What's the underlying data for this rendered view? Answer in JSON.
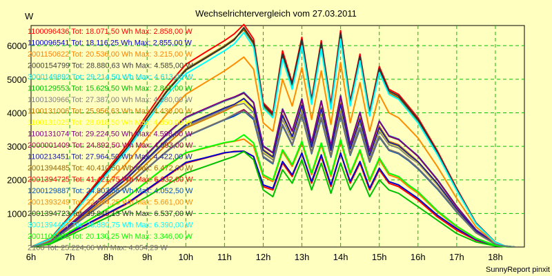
{
  "chart_data": {
    "type": "line",
    "title": "Wechselrichtervergleich vom 27.03.2011",
    "ylabel": "W",
    "xlabel": "",
    "footer": "SunnyReport pinxit",
    "x_ticks": [
      "6h",
      "7h",
      "8h",
      "9h",
      "10h",
      "11h",
      "12h",
      "13h",
      "14h",
      "15h",
      "16h",
      "17h",
      "18h"
    ],
    "y_ticks": [
      1000,
      2000,
      3000,
      4000,
      5000,
      6000
    ],
    "xlim": [
      6,
      18.75
    ],
    "ylim": [
      0,
      6600
    ],
    "grid": true,
    "x_hours": [
      6.0,
      6.5,
      7.0,
      7.5,
      8.0,
      8.5,
      9.0,
      9.5,
      10.0,
      10.5,
      11.0,
      11.25,
      11.5,
      11.75,
      12.0,
      12.25,
      12.5,
      12.75,
      13.0,
      13.25,
      13.5,
      13.75,
      14.0,
      14.25,
      14.5,
      14.75,
      15.0,
      15.25,
      15.5,
      15.75,
      16.0,
      16.5,
      17.0,
      17.5,
      18.0,
      18.25,
      18.5
    ],
    "series": [
      {
        "name": "1100096436 Tot: 18.071,50 Wh Max: 2.858,00 W",
        "color": "#ff0000",
        "values": [
          0,
          100,
          400,
          700,
          1000,
          1300,
          1700,
          2100,
          2500,
          2650,
          2800,
          2850,
          2858,
          2700,
          1800,
          1700,
          2500,
          2100,
          2800,
          1900,
          2700,
          1800,
          2800,
          1900,
          2500,
          1700,
          2300,
          1900,
          1800,
          1600,
          1400,
          900,
          500,
          200,
          40,
          10,
          0
        ]
      },
      {
        "name": "1100096541 Tot: 18.116,25 Wh Max: 2.855,00 W",
        "color": "#0000cc",
        "values": [
          0,
          100,
          420,
          720,
          1020,
          1320,
          1720,
          2120,
          2520,
          2660,
          2810,
          2840,
          2855,
          2700,
          1850,
          1750,
          2550,
          2150,
          2800,
          1950,
          2750,
          1850,
          2800,
          1950,
          2550,
          1750,
          2350,
          1950,
          1850,
          1650,
          1450,
          950,
          550,
          220,
          50,
          10,
          0
        ]
      },
      {
        "name": "2001150622 Tot: 20.536,00 Wh Max: 3.215,00 W",
        "color": "#ff7f00",
        "values": [
          0,
          120,
          450,
          800,
          1150,
          1500,
          1950,
          2400,
          2800,
          2950,
          3100,
          3150,
          3215,
          3000,
          2100,
          1950,
          2850,
          2400,
          3100,
          2150,
          3050,
          2100,
          3150,
          2150,
          2850,
          1950,
          2600,
          2150,
          2050,
          1800,
          1600,
          1050,
          600,
          250,
          50,
          10,
          0
        ]
      },
      {
        "name": "2000154799 Tot: 28.880,63 Wh Max: 4.585,00 W",
        "color": "#404040",
        "values": [
          0,
          180,
          650,
          1150,
          1650,
          2150,
          2750,
          3350,
          3850,
          4100,
          4350,
          4450,
          4585,
          4300,
          3000,
          2800,
          4100,
          3450,
          4400,
          3100,
          4350,
          3000,
          4500,
          3050,
          4000,
          2850,
          3750,
          3300,
          3200,
          2950,
          2700,
          2000,
          1200,
          500,
          100,
          20,
          0
        ]
      },
      {
        "name": "3000149892 Tot: 29.214,50 Wh Max: 4.613,00 W",
        "color": "#00e0e0",
        "values": [
          0,
          180,
          660,
          1160,
          1660,
          2160,
          2760,
          3360,
          3860,
          4110,
          4360,
          4460,
          4613,
          4320,
          3020,
          2820,
          4120,
          3460,
          4420,
          3120,
          4360,
          3020,
          4520,
          3060,
          4020,
          2860,
          3760,
          3320,
          3220,
          2960,
          2720,
          2020,
          1220,
          520,
          110,
          20,
          0
        ]
      },
      {
        "name": "1100129553 Tot: 15.629,50 Wh Max: 2.847,00 W",
        "color": "#00c000",
        "values": [
          0,
          90,
          350,
          620,
          900,
          1180,
          1500,
          1850,
          2200,
          2400,
          2600,
          2700,
          2847,
          2600,
          1700,
          1500,
          2300,
          1900,
          2600,
          1700,
          2500,
          1600,
          2500,
          1700,
          2200,
          1500,
          2000,
          1700,
          1600,
          1400,
          1200,
          800,
          400,
          150,
          30,
          10,
          0
        ]
      },
      {
        "name": "1100130966 Tot: 27.387,00 Wh Max: 4.280,00 W",
        "color": "#808080",
        "values": [
          0,
          170,
          620,
          1100,
          1580,
          2060,
          2600,
          3150,
          3600,
          3850,
          4100,
          4200,
          4280,
          4000,
          2800,
          2600,
          3800,
          3200,
          4100,
          2900,
          4000,
          2800,
          4100,
          2850,
          3700,
          2650,
          3450,
          3050,
          2950,
          2700,
          2500,
          1850,
          1100,
          450,
          90,
          20,
          0
        ]
      },
      {
        "name": "1100131006 Tot: 25.956,63 Wh Max: 4.430,00 W",
        "color": "#cc7a00",
        "values": [
          0,
          160,
          600,
          1050,
          1500,
          1950,
          2500,
          3050,
          3550,
          3800,
          4050,
          4200,
          4430,
          4150,
          2900,
          2700,
          3950,
          3300,
          4250,
          3000,
          4150,
          2900,
          4300,
          2950,
          3850,
          2750,
          3600,
          3150,
          3050,
          2800,
          2550,
          1900,
          1150,
          480,
          95,
          20,
          0
        ]
      },
      {
        "name": "1100131025 Tot: 28.018,50 Wh Max: 4.350,00 W",
        "color": "#ffff00",
        "values": [
          0,
          175,
          640,
          1120,
          1600,
          2080,
          2640,
          3200,
          3650,
          3900,
          4150,
          4250,
          4350,
          4080,
          2850,
          2650,
          3880,
          3250,
          4180,
          2950,
          4080,
          2850,
          4200,
          2900,
          3780,
          2700,
          3520,
          3100,
          3000,
          2750,
          2520,
          1870,
          1120,
          460,
          92,
          20,
          0
        ]
      },
      {
        "name": "1100131074 Tot: 29.224,50 Wh Max: 4.598,00 W",
        "color": "#800080",
        "values": [
          0,
          185,
          670,
          1170,
          1670,
          2170,
          2770,
          3370,
          3870,
          4120,
          4370,
          4470,
          4598,
          4310,
          3010,
          2810,
          4110,
          3455,
          4410,
          3110,
          4355,
          3010,
          4510,
          3055,
          4010,
          2855,
          3755,
          3310,
          3210,
          2955,
          2710,
          2010,
          1210,
          510,
          105,
          20,
          0
        ]
      },
      {
        "name": "2000001409 Tot: 24.892,50 Wh Max: 4.093,00 W",
        "color": "#a00050",
        "values": [
          0,
          150,
          560,
          990,
          1420,
          1850,
          2350,
          2850,
          3300,
          3550,
          3800,
          3950,
          4093,
          3850,
          2700,
          2500,
          3650,
          3050,
          3950,
          2800,
          3850,
          2700,
          3950,
          2750,
          3550,
          2550,
          3300,
          2900,
          2800,
          2600,
          2350,
          1750,
          1050,
          430,
          85,
          20,
          0
        ]
      },
      {
        "name": "1100213451 Tot: 27.964,50 Wh Max: 4.422,00 W",
        "color": "#2020a0",
        "values": [
          0,
          175,
          630,
          1110,
          1590,
          2070,
          2630,
          3190,
          3640,
          3890,
          4140,
          4250,
          4422,
          4130,
          2880,
          2680,
          3920,
          3280,
          4220,
          2980,
          4120,
          2880,
          4250,
          2920,
          3800,
          2720,
          3560,
          3120,
          3020,
          2770,
          2540,
          1890,
          1130,
          470,
          93,
          20,
          0
        ]
      },
      {
        "name": "2001394485 Tot: 40.410,50 Wh Max: 6.472,00 W",
        "color": "#996600",
        "values": [
          0,
          250,
          900,
          1600,
          2300,
          3000,
          3850,
          4650,
          5300,
          5650,
          6000,
          6200,
          6472,
          6050,
          4200,
          3900,
          5700,
          4800,
          6100,
          4300,
          6000,
          4150,
          6300,
          4250,
          5600,
          3950,
          5250,
          4600,
          4450,
          4100,
          3750,
          2800,
          1700,
          700,
          140,
          30,
          0
        ]
      },
      {
        "name": "2001394725 Tot: 41.421,75 Wh Max: 6.632,00 W",
        "color": "#ff0000",
        "values": [
          0,
          255,
          920,
          1640,
          2360,
          3080,
          3950,
          4780,
          5440,
          5800,
          6150,
          6350,
          6632,
          6200,
          4300,
          4000,
          5850,
          4900,
          6250,
          4400,
          6150,
          4250,
          6450,
          4350,
          5750,
          4050,
          5380,
          4700,
          4550,
          4200,
          3850,
          2870,
          1750,
          720,
          145,
          30,
          0
        ]
      },
      {
        "name": "1200129887 Tot: 24.803,56 Wh Max: 4.052,50 W",
        "color": "#0050c0",
        "values": [
          0,
          150,
          555,
          985,
          1415,
          1845,
          2340,
          2840,
          3290,
          3540,
          3790,
          3900,
          4052,
          3800,
          2680,
          2480,
          3620,
          3030,
          3920,
          2780,
          3820,
          2680,
          3920,
          2730,
          3520,
          2530,
          3280,
          2880,
          2780,
          2580,
          2330,
          1730,
          1040,
          425,
          84,
          20,
          0
        ]
      },
      {
        "name": "2001393249 Tot: 32.294,25 Wh Max: 5.661,00 W",
        "color": "#ff8c00",
        "values": [
          0,
          210,
          760,
          1350,
          1940,
          2530,
          3250,
          3950,
          4550,
          4900,
          5250,
          5450,
          5661,
          5300,
          3700,
          3450,
          5000,
          4200,
          5350,
          3800,
          5250,
          3650,
          5500,
          3700,
          4900,
          3450,
          4550,
          4000,
          3850,
          3550,
          3250,
          2400,
          1450,
          600,
          120,
          25,
          0
        ]
      },
      {
        "name": "2001394723 Tot: 39.845,13 Wh Max: 6.537,00 W",
        "color": "#303030",
        "values": [
          0,
          248,
          895,
          1590,
          2285,
          2980,
          3830,
          4620,
          5270,
          5620,
          5970,
          6170,
          6537,
          6100,
          4250,
          3950,
          5750,
          4850,
          6180,
          4350,
          6080,
          4200,
          6380,
          4300,
          5680,
          4000,
          5320,
          4650,
          4500,
          4150,
          3800,
          2830,
          1720,
          710,
          142,
          30,
          0
        ]
      },
      {
        "name": "3001394487 Tot: 38.880,75 Wh Max: 6.390,00 W",
        "color": "#00ffff",
        "values": [
          0,
          240,
          870,
          1550,
          2230,
          2910,
          3740,
          4520,
          5160,
          5500,
          5850,
          6050,
          6390,
          5950,
          4150,
          3850,
          5600,
          4700,
          6000,
          4250,
          5900,
          4100,
          6200,
          4200,
          5550,
          3900,
          5200,
          4550,
          4400,
          4050,
          3700,
          2760,
          1680,
          690,
          138,
          28,
          0
        ]
      },
      {
        "name": "2001100250 Tot: 20.130,25 Wh Max: 3.346,00 W",
        "color": "#00ff00",
        "values": [
          0,
          120,
          455,
          810,
          1160,
          1510,
          1960,
          2410,
          2810,
          2960,
          3110,
          3160,
          3346,
          3100,
          2150,
          2000,
          2900,
          2450,
          3150,
          2200,
          3100,
          2150,
          3200,
          2200,
          2900,
          2000,
          2650,
          2200,
          2100,
          1850,
          1650,
          1080,
          620,
          260,
          52,
          10,
          0
        ]
      },
      {
        "name": "2100 Tot: 25.224,66 Wh Max: 4.054,29 W",
        "color": "#707070",
        "values": [
          0,
          150,
          560,
          990,
          1420,
          1850,
          2350,
          2850,
          3300,
          3550,
          3800,
          3950,
          4054,
          3850,
          2700,
          2500,
          3650,
          3050,
          3950,
          2800,
          3850,
          2700,
          3950,
          2750,
          3550,
          2550,
          3300,
          2900,
          2800,
          2600,
          2350,
          1750,
          1050,
          430,
          85,
          20,
          0
        ]
      }
    ]
  }
}
